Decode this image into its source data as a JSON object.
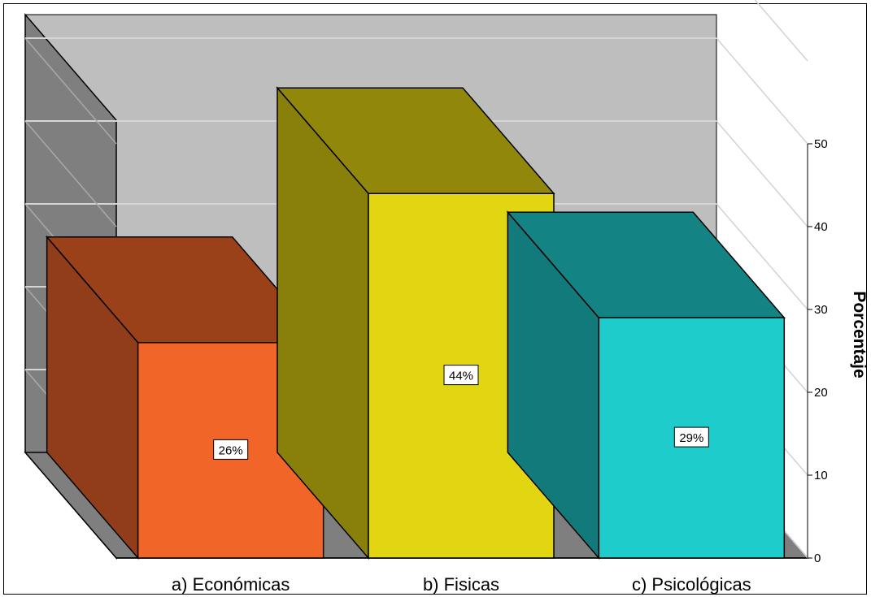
{
  "chart_data": {
    "type": "bar",
    "categories": [
      "a) Económicas",
      "b) Fisicas",
      "c) Psicológicas"
    ],
    "values": [
      26,
      44,
      29
    ],
    "data_labels": [
      "26%",
      "44%",
      "29%"
    ],
    "ylabel": "Porcentaje",
    "ylim": [
      0,
      50
    ],
    "yticks": [
      0,
      10,
      20,
      30,
      40,
      50
    ],
    "grid": true,
    "style": "3d",
    "colors": {
      "bars": [
        "#F26529",
        "#E2D511",
        "#1ECCCC"
      ],
      "back_wall": "#BEBEBE",
      "side_wall": "#7F7F7F"
    }
  }
}
